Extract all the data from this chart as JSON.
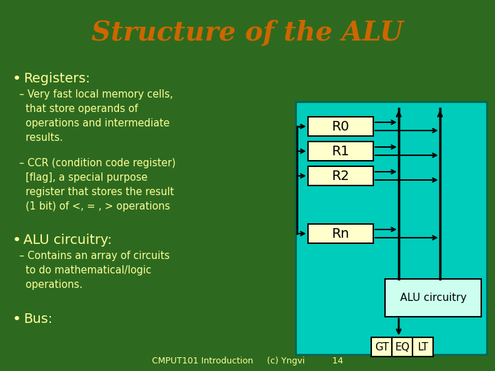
{
  "title": "Structure of the ALU",
  "title_color": "#CC6600",
  "bg_color": "#2D6A1F",
  "slide_bg": "#2D6A1F",
  "text_color": "#FFFF99",
  "bullet_color": "#FFFF99",
  "diagram_bg": "#00CCBB",
  "register_bg": "#FFFFCC",
  "alu_bg": "#CCFFEE",
  "gtlt_bg": "#FFFFCC",
  "line_color": "#000000",
  "bullet1": "Registers:",
  "sub1a": "– Very fast local memory cells,\n  that store operands of\n  operations and intermediate\n  results.",
  "sub1b": "– CCR (condition code register)\n  [flag], a special purpose\n  register that stores the result\n  (1 bit) of <, = , > operations",
  "bullet2": "ALU circuitry:",
  "sub2a": "– Contains an array of circuits\n  to do mathematical/logic\n  operations.",
  "bullet3": "Bus:",
  "footer": "CMPUT101 Introduction     (c) Yngvi          14",
  "registers": [
    "R0",
    "R1",
    "R2",
    "Rn"
  ],
  "alu_label": "ALU circuitry",
  "gtlt_labels": [
    "GT",
    "EQ",
    "LT"
  ]
}
